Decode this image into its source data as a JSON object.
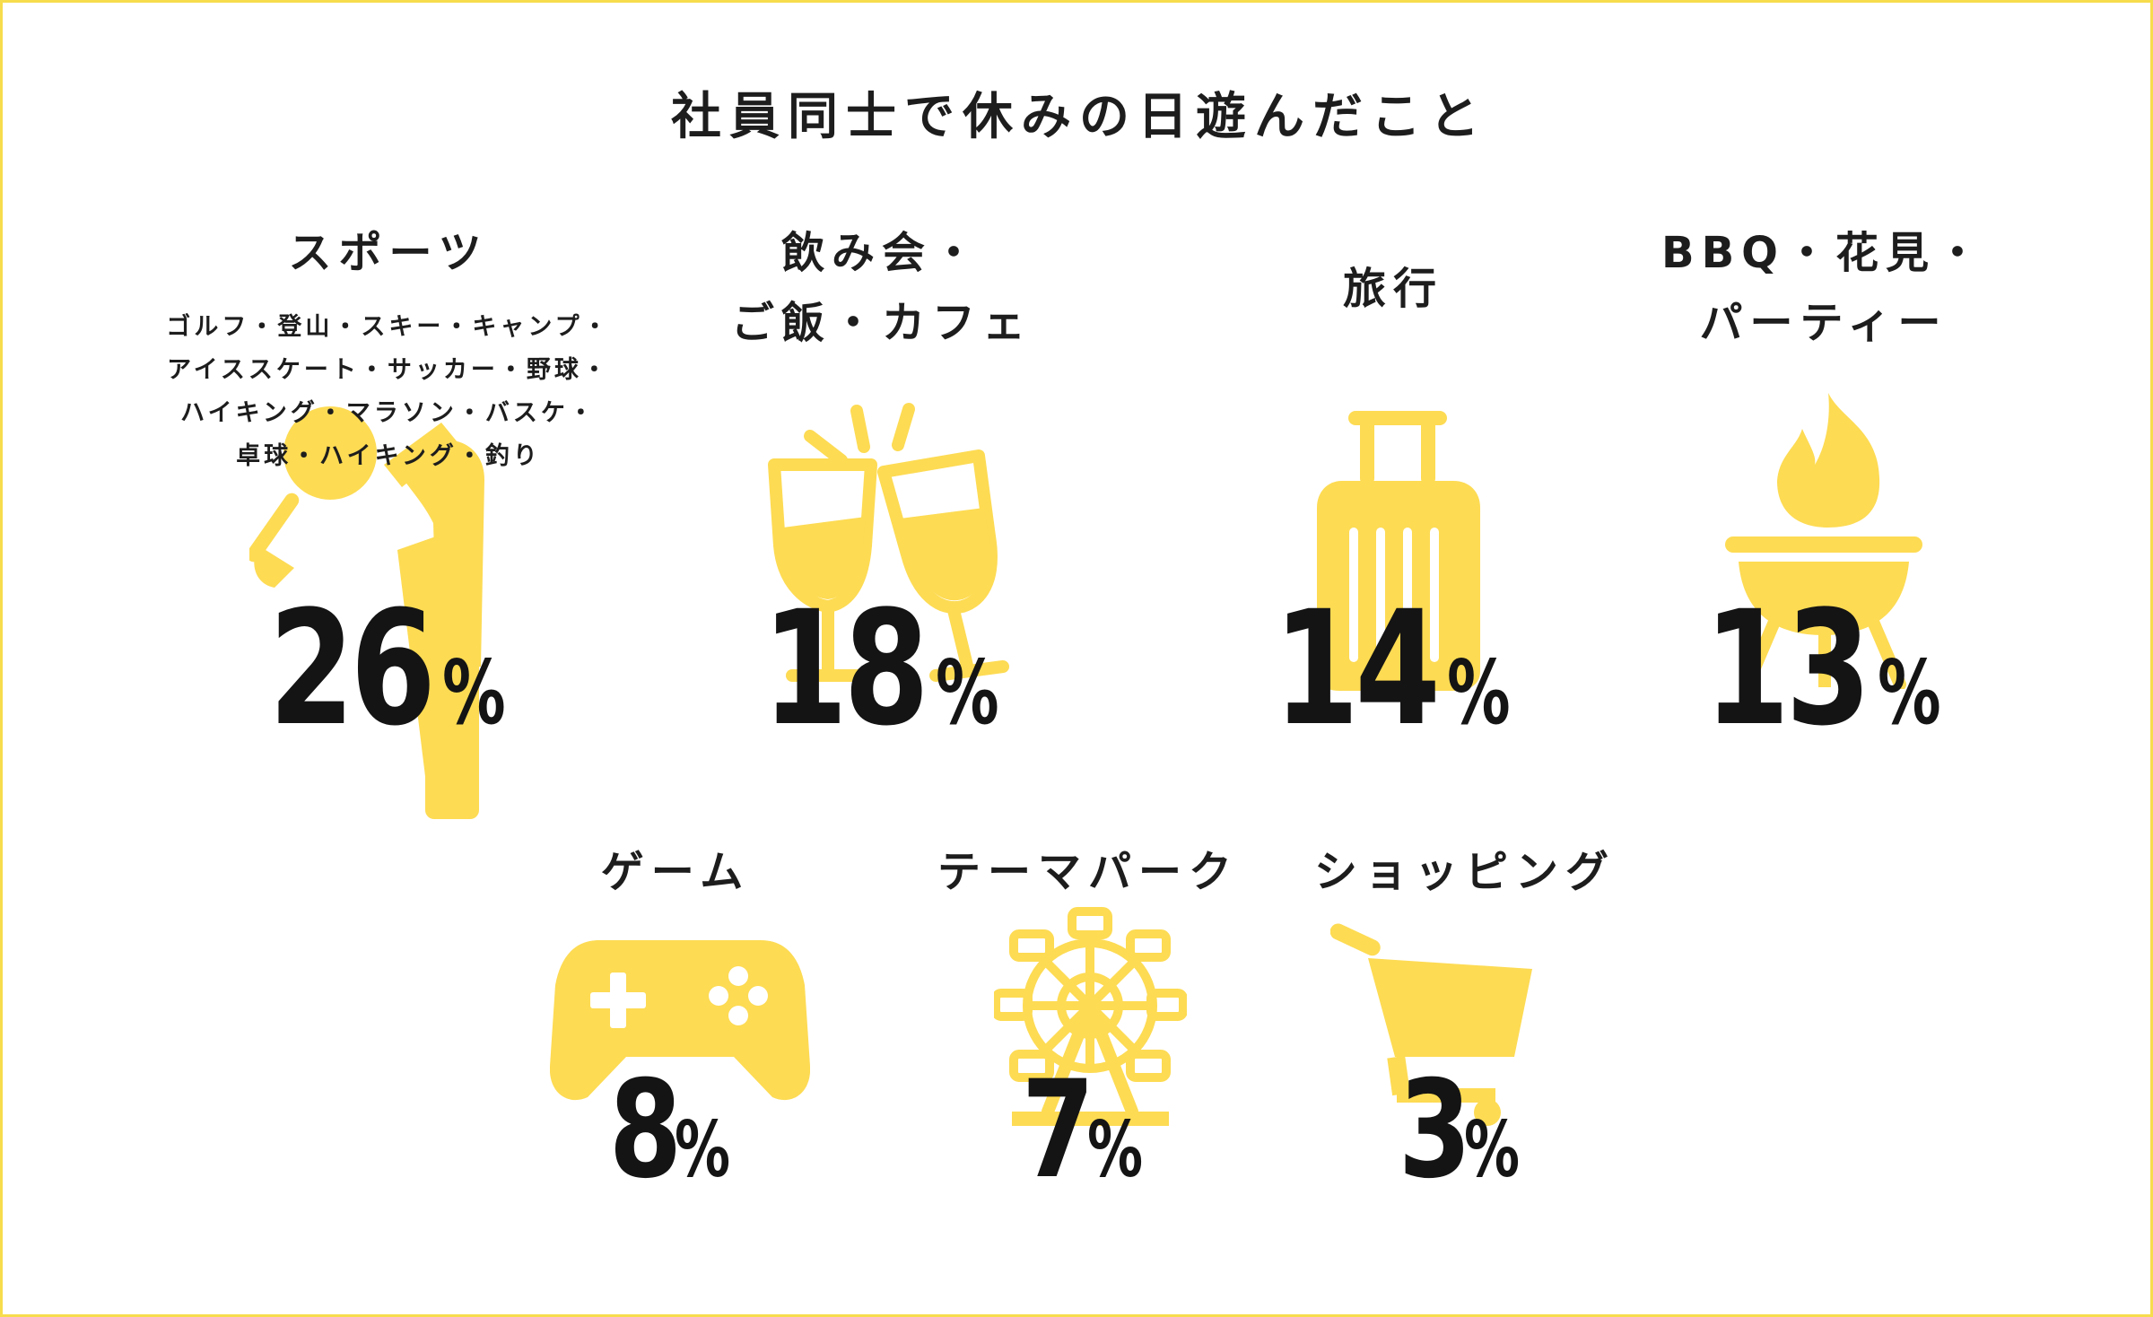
{
  "title": "社員同士で休みの日遊んだこと",
  "colors": {
    "accent": "#fddb53",
    "frame": "#f7dc4d",
    "text": "#141414"
  },
  "chart_data": {
    "type": "infographic",
    "title": "社員同士で休みの日遊んだこと",
    "unit": "%",
    "items": [
      {
        "label_lines": [
          "スポーツ"
        ],
        "detail_lines": [
          "ゴルフ・登山・スキー・キャンプ・",
          "アイススケート・サッカー・野球・",
          "ハイキング・マラソン・バスケ・",
          "卓球・ハイキング・釣り"
        ],
        "value": 26,
        "value_text": "26",
        "icon": "golfer-icon"
      },
      {
        "label_lines": [
          "飲み会・",
          "ご飯・カフェ"
        ],
        "value": 18,
        "value_text": "18",
        "icon": "wine-toast-icon"
      },
      {
        "label_lines": [
          "旅行"
        ],
        "value": 14,
        "value_text": "14",
        "icon": "suitcase-icon"
      },
      {
        "label_lines": [
          "BBQ・花見・",
          "パーティー"
        ],
        "value": 13,
        "value_text": "13",
        "icon": "bbq-grill-icon"
      },
      {
        "label_lines": [
          "ゲーム"
        ],
        "value": 8,
        "value_text": "8",
        "icon": "game-controller-icon"
      },
      {
        "label_lines": [
          "テーマパーク"
        ],
        "value": 7,
        "value_text": "7",
        "icon": "ferris-wheel-icon"
      },
      {
        "label_lines": [
          "ショッピング"
        ],
        "value": 3,
        "value_text": "3",
        "icon": "shopping-cart-icon"
      }
    ]
  }
}
